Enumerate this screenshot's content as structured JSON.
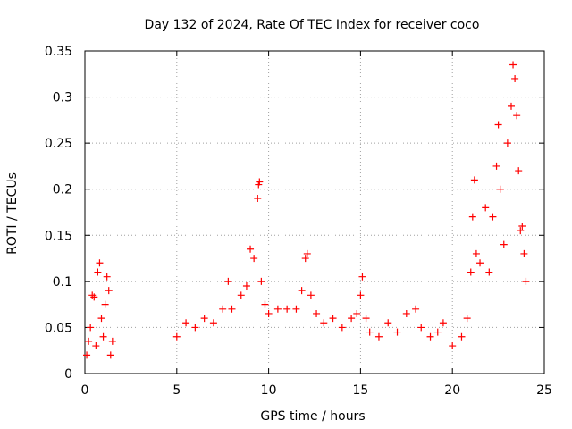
{
  "chart_data": {
    "type": "scatter",
    "title": "Day 132 of 2024, Rate Of TEC Index for receiver coco",
    "xlabel": "GPS time / hours",
    "ylabel": "ROTI / TECUs",
    "xlim": [
      0,
      25
    ],
    "ylim": [
      0,
      0.35
    ],
    "xticks": [
      "0",
      "5",
      "10",
      "15",
      "20",
      "25"
    ],
    "yticks": [
      "0",
      "0.05",
      "0.1",
      "0.15",
      "0.2",
      "0.25",
      "0.3",
      "0.35"
    ],
    "grid": true,
    "marker": "plus",
    "color": "#ff0000",
    "series": [
      {
        "points": [
          [
            0.1,
            0.02
          ],
          [
            0.2,
            0.035
          ],
          [
            0.3,
            0.05
          ],
          [
            0.4,
            0.085
          ],
          [
            0.5,
            0.083
          ],
          [
            0.6,
            0.03
          ],
          [
            0.7,
            0.11
          ],
          [
            0.8,
            0.12
          ],
          [
            0.9,
            0.06
          ],
          [
            1.0,
            0.04
          ],
          [
            1.1,
            0.075
          ],
          [
            1.2,
            0.105
          ],
          [
            1.3,
            0.09
          ],
          [
            1.4,
            0.02
          ],
          [
            1.5,
            0.035
          ],
          [
            5.0,
            0.04
          ],
          [
            5.5,
            0.055
          ],
          [
            6.0,
            0.05
          ],
          [
            6.5,
            0.06
          ],
          [
            7.0,
            0.055
          ],
          [
            7.5,
            0.07
          ],
          [
            7.8,
            0.1
          ],
          [
            8.0,
            0.07
          ],
          [
            8.5,
            0.085
          ],
          [
            8.8,
            0.095
          ],
          [
            9.0,
            0.135
          ],
          [
            9.2,
            0.125
          ],
          [
            9.4,
            0.19
          ],
          [
            9.45,
            0.205
          ],
          [
            9.5,
            0.208
          ],
          [
            9.6,
            0.1
          ],
          [
            9.8,
            0.075
          ],
          [
            10.0,
            0.065
          ],
          [
            10.5,
            0.07
          ],
          [
            11.0,
            0.07
          ],
          [
            11.5,
            0.07
          ],
          [
            11.8,
            0.09
          ],
          [
            12.0,
            0.125
          ],
          [
            12.1,
            0.13
          ],
          [
            12.3,
            0.085
          ],
          [
            12.6,
            0.065
          ],
          [
            13.0,
            0.055
          ],
          [
            13.5,
            0.06
          ],
          [
            14.0,
            0.05
          ],
          [
            14.5,
            0.06
          ],
          [
            14.8,
            0.065
          ],
          [
            15.0,
            0.085
          ],
          [
            15.1,
            0.105
          ],
          [
            15.3,
            0.06
          ],
          [
            15.5,
            0.045
          ],
          [
            16.0,
            0.04
          ],
          [
            16.5,
            0.055
          ],
          [
            17.0,
            0.045
          ],
          [
            17.5,
            0.065
          ],
          [
            18.0,
            0.07
          ],
          [
            18.3,
            0.05
          ],
          [
            18.8,
            0.04
          ],
          [
            19.2,
            0.045
          ],
          [
            19.5,
            0.055
          ],
          [
            20.0,
            0.03
          ],
          [
            20.5,
            0.04
          ],
          [
            20.8,
            0.06
          ],
          [
            21.0,
            0.11
          ],
          [
            21.1,
            0.17
          ],
          [
            21.2,
            0.21
          ],
          [
            21.3,
            0.13
          ],
          [
            21.5,
            0.12
          ],
          [
            21.8,
            0.18
          ],
          [
            22.0,
            0.11
          ],
          [
            22.2,
            0.17
          ],
          [
            22.4,
            0.225
          ],
          [
            22.5,
            0.27
          ],
          [
            22.6,
            0.2
          ],
          [
            22.8,
            0.14
          ],
          [
            23.0,
            0.25
          ],
          [
            23.2,
            0.29
          ],
          [
            23.3,
            0.335
          ],
          [
            23.4,
            0.32
          ],
          [
            23.5,
            0.28
          ],
          [
            23.6,
            0.22
          ],
          [
            23.7,
            0.155
          ],
          [
            23.8,
            0.16
          ],
          [
            23.9,
            0.13
          ],
          [
            24.0,
            0.1
          ]
        ]
      }
    ]
  }
}
